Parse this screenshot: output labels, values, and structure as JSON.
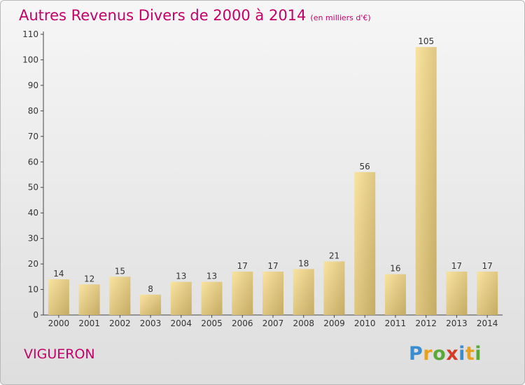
{
  "header": {
    "title": "Autres Revenus Divers de 2000 à 2014",
    "subtitle": "(en milliers d'€)"
  },
  "footer": {
    "city": "VIGUERON",
    "brand": "Proxiti"
  },
  "colors": {
    "accent": "#c40069",
    "bar_light": "#f6dc8e",
    "bar_dark": "#c5ab63"
  },
  "chart_data": {
    "type": "bar",
    "categories": [
      "2000",
      "2001",
      "2002",
      "2003",
      "2004",
      "2005",
      "2006",
      "2007",
      "2008",
      "2009",
      "2010",
      "2011",
      "2012",
      "2013",
      "2014"
    ],
    "values": [
      14,
      12,
      15,
      8,
      13,
      13,
      17,
      17,
      18,
      21,
      56,
      16,
      105,
      17,
      17
    ],
    "title": "Autres Revenus Divers de 2000 à 2014",
    "subtitle": "(en milliers d'€)",
    "xlabel": "",
    "ylabel": "",
    "ylim": [
      0,
      110
    ],
    "yticks": [
      0,
      10,
      20,
      30,
      40,
      50,
      60,
      70,
      80,
      90,
      100,
      110
    ],
    "grid": false,
    "data_labels": true
  }
}
